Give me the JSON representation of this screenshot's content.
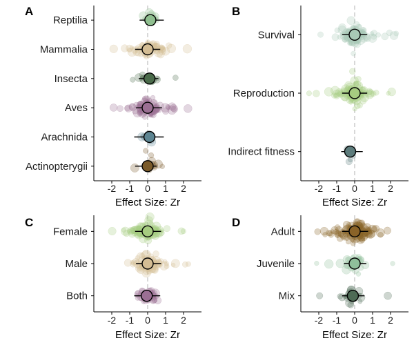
{
  "chart_data": [
    {
      "type": "scatter",
      "panel": "A",
      "xlabel": "Effect Size: Zr",
      "xlim": [
        -3,
        3
      ],
      "xticks": [
        -2,
        -1,
        0,
        1,
        2
      ],
      "categories": [
        "Reptilia",
        "Mammalia",
        "Insecta",
        "Aves",
        "Arachnida",
        "Actinopterygii"
      ],
      "estimates": [
        {
          "category": "Reptilia",
          "mean": 0.15,
          "ci": [
            -0.45,
            0.9
          ],
          "color": "#8fbf8f",
          "spread": 0.25,
          "n": 14
        },
        {
          "category": "Mammalia",
          "mean": 0.0,
          "ci": [
            -0.7,
            0.7
          ],
          "color": "#d4bd94",
          "spread": 0.5,
          "n": 70
        },
        {
          "category": "Insecta",
          "mean": 0.1,
          "ci": [
            -0.5,
            0.6
          ],
          "color": "#4a6b4a",
          "spread": 0.35,
          "n": 16
        },
        {
          "category": "Aves",
          "mean": 0.0,
          "ci": [
            -0.65,
            0.8
          ],
          "color": "#9b6f93",
          "spread": 0.5,
          "n": 80
        },
        {
          "category": "Arachnida",
          "mean": 0.1,
          "ci": [
            -0.75,
            0.9
          ],
          "color": "#5d8592",
          "spread": 0.2,
          "n": 6
        },
        {
          "category": "Actinopterygii",
          "mean": 0.0,
          "ci": [
            -0.7,
            0.5
          ],
          "color": "#7a5a2a",
          "spread": 0.4,
          "n": 14
        }
      ]
    },
    {
      "type": "scatter",
      "panel": "B",
      "xlabel": "Effect Size: Zr",
      "xlim": [
        -3,
        3
      ],
      "xticks": [
        -2,
        -1,
        0,
        1,
        2
      ],
      "categories": [
        "Survival",
        "Reproduction",
        "Indirect fitness"
      ],
      "estimates": [
        {
          "category": "Survival",
          "mean": 0.0,
          "ci": [
            -0.7,
            0.7
          ],
          "color": "#a8c9b6",
          "spread": 0.45,
          "n": 90
        },
        {
          "category": "Reproduction",
          "mean": 0.0,
          "ci": [
            -0.7,
            0.7
          ],
          "color": "#a6cc80",
          "spread": 0.45,
          "n": 100
        },
        {
          "category": "Indirect fitness",
          "mean": -0.25,
          "ci": [
            -0.75,
            0.45
          ],
          "color": "#5d7c7c",
          "spread": 0.2,
          "n": 4
        }
      ]
    },
    {
      "type": "scatter",
      "panel": "C",
      "xlabel": "Effect Size: Zr",
      "xlim": [
        -3,
        3
      ],
      "xticks": [
        -2,
        -1,
        0,
        1,
        2
      ],
      "categories": [
        "Female",
        "Male",
        "Both"
      ],
      "estimates": [
        {
          "category": "Female",
          "mean": 0.0,
          "ci": [
            -0.7,
            0.75
          ],
          "color": "#a6cc80",
          "spread": 0.45,
          "n": 90
        },
        {
          "category": "Male",
          "mean": 0.0,
          "ci": [
            -0.65,
            0.75
          ],
          "color": "#d4bd94",
          "spread": 0.45,
          "n": 80
        },
        {
          "category": "Both",
          "mean": -0.05,
          "ci": [
            -0.75,
            0.7
          ],
          "color": "#9b6f93",
          "spread": 0.35,
          "n": 40
        }
      ]
    },
    {
      "type": "scatter",
      "panel": "D",
      "xlabel": "Effect Size: Zr",
      "xlim": [
        -3,
        3
      ],
      "xticks": [
        -2,
        -1,
        0,
        1,
        2
      ],
      "categories": [
        "Adult",
        "Juvenile",
        "Mix"
      ],
      "estimates": [
        {
          "category": "Adult",
          "mean": 0.0,
          "ci": [
            -0.7,
            0.75
          ],
          "color": "#8a6328",
          "spread": 0.55,
          "n": 120
        },
        {
          "category": "Juvenile",
          "mean": 0.0,
          "ci": [
            -0.6,
            0.65
          ],
          "color": "#8fbf9a",
          "spread": 0.35,
          "n": 30
        },
        {
          "category": "Mix",
          "mean": -0.1,
          "ci": [
            -0.7,
            0.55
          ],
          "color": "#4e6b55",
          "spread": 0.3,
          "n": 25
        }
      ]
    }
  ]
}
